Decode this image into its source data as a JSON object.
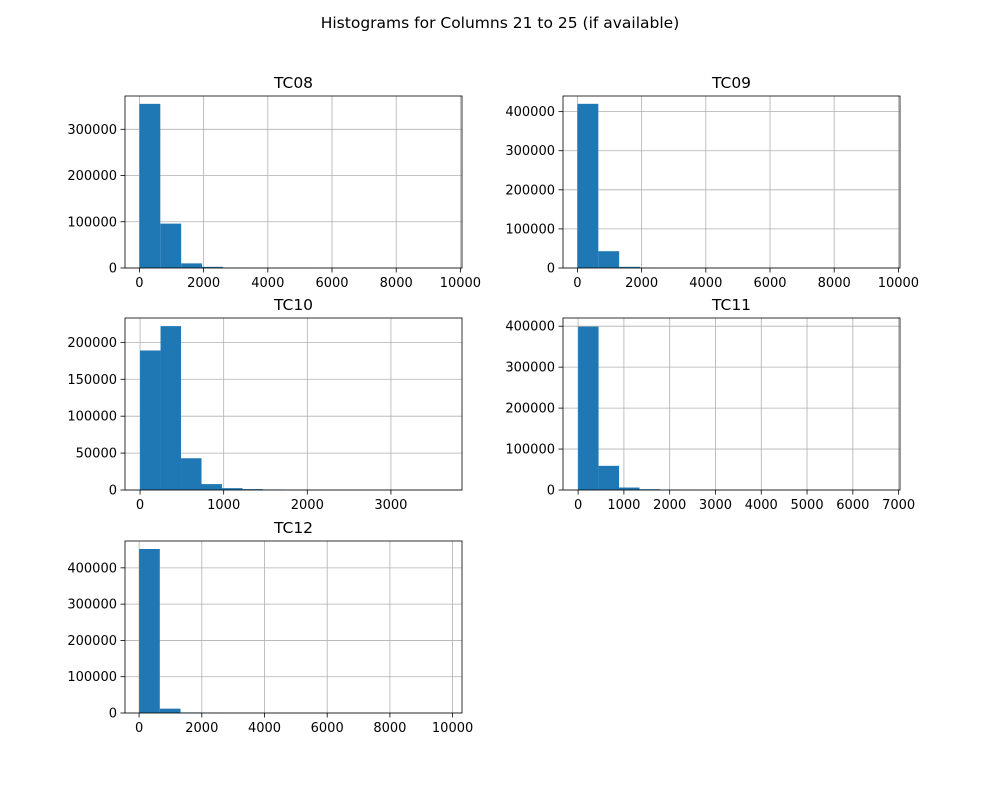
{
  "figure": {
    "suptitle": "Histograms for Columns 21 to 25 (if available)"
  },
  "chart_data": [
    {
      "type": "bar",
      "title": "TC08",
      "grid": true,
      "xlim": [
        -450,
        10050
      ],
      "ylim": [
        0,
        372000
      ],
      "xticks": [
        0,
        2000,
        4000,
        6000,
        8000,
        10000
      ],
      "xtick_labels": [
        "0",
        "2000",
        "4000",
        "6000",
        "8000",
        "10000"
      ],
      "yticks": [
        0,
        100000,
        200000,
        300000
      ],
      "ytick_labels": [
        "0",
        "100000",
        "200000",
        "300000"
      ],
      "bin_edges": [
        0,
        650,
        1300,
        1950,
        2600,
        3250,
        3900,
        4550,
        5200,
        5850,
        6500,
        7150,
        7800,
        8450,
        9100,
        9750
      ],
      "values": [
        355000,
        96000,
        10000,
        2500,
        600,
        300,
        150,
        80,
        50,
        30,
        20,
        15,
        10,
        5,
        5
      ],
      "color": "#1f77b4"
    },
    {
      "type": "bar",
      "title": "TC09",
      "grid": true,
      "xlim": [
        -450,
        10050
      ],
      "ylim": [
        0,
        440000
      ],
      "xticks": [
        0,
        2000,
        4000,
        6000,
        8000,
        10000
      ],
      "xtick_labels": [
        "0",
        "2000",
        "4000",
        "6000",
        "8000",
        "10000"
      ],
      "yticks": [
        0,
        100000,
        200000,
        300000,
        400000
      ],
      "ytick_labels": [
        "0",
        "100000",
        "200000",
        "300000",
        "400000"
      ],
      "bin_edges": [
        0,
        650,
        1300,
        1950,
        2600,
        3250,
        3900,
        4550,
        5200,
        5850,
        6500,
        7150,
        7800,
        8450,
        9100,
        9750
      ],
      "values": [
        420000,
        43000,
        3000,
        600,
        200,
        100,
        50,
        30,
        20,
        15,
        10,
        5,
        5,
        5,
        5
      ],
      "color": "#1f77b4"
    },
    {
      "type": "bar",
      "title": "TC10",
      "grid": true,
      "xlim": [
        -180,
        3850
      ],
      "ylim": [
        0,
        233000
      ],
      "xticks": [
        0,
        1000,
        2000,
        3000
      ],
      "xtick_labels": [
        "0",
        "1000",
        "2000",
        "3000"
      ],
      "yticks": [
        0,
        50000,
        100000,
        150000,
        200000
      ],
      "ytick_labels": [
        "0",
        "50000",
        "100000",
        "150000",
        "200000"
      ],
      "bin_edges": [
        0,
        245,
        490,
        735,
        980,
        1225,
        1470,
        1715,
        1960,
        2205,
        2450,
        2695,
        2940,
        3185,
        3430,
        3675
      ],
      "values": [
        189000,
        222000,
        43000,
        8000,
        2500,
        1200,
        600,
        300,
        150,
        80,
        50,
        30,
        20,
        10,
        5
      ],
      "color": "#1f77b4"
    },
    {
      "type": "bar",
      "title": "TC11",
      "grid": true,
      "xlim": [
        -330,
        7030
      ],
      "ylim": [
        0,
        420000
      ],
      "xticks": [
        0,
        1000,
        2000,
        3000,
        4000,
        5000,
        6000,
        7000
      ],
      "xtick_labels": [
        "0",
        "1000",
        "2000",
        "3000",
        "4000",
        "5000",
        "6000",
        "7000"
      ],
      "yticks": [
        0,
        100000,
        200000,
        300000,
        400000
      ],
      "ytick_labels": [
        "0",
        "100000",
        "200000",
        "300000",
        "400000"
      ],
      "bin_edges": [
        0,
        447,
        894,
        1341,
        1788,
        2235,
        2682,
        3129,
        3576,
        4023,
        4470,
        4917,
        5364,
        5811,
        6258,
        6705
      ],
      "values": [
        399000,
        59000,
        6000,
        2000,
        800,
        300,
        150,
        80,
        50,
        30,
        20,
        10,
        10,
        5,
        5
      ],
      "color": "#1f77b4"
    },
    {
      "type": "bar",
      "title": "TC12",
      "grid": true,
      "xlim": [
        -450,
        10300
      ],
      "ylim": [
        0,
        474000
      ],
      "xticks": [
        0,
        2000,
        4000,
        6000,
        8000,
        10000
      ],
      "xtick_labels": [
        "0",
        "2000",
        "4000",
        "6000",
        "8000",
        "10000"
      ],
      "yticks": [
        0,
        100000,
        200000,
        300000,
        400000
      ],
      "ytick_labels": [
        "0",
        "100000",
        "200000",
        "300000",
        "400000"
      ],
      "bin_edges": [
        0,
        660,
        1320,
        1980,
        2640,
        3300,
        3960,
        4620,
        5280,
        5940,
        6600,
        7260,
        7920,
        8580,
        9240,
        9900
      ],
      "values": [
        452000,
        12000,
        1500,
        400,
        150,
        80,
        50,
        30,
        20,
        15,
        10,
        5,
        5,
        5,
        5
      ],
      "color": "#1f77b4"
    }
  ]
}
